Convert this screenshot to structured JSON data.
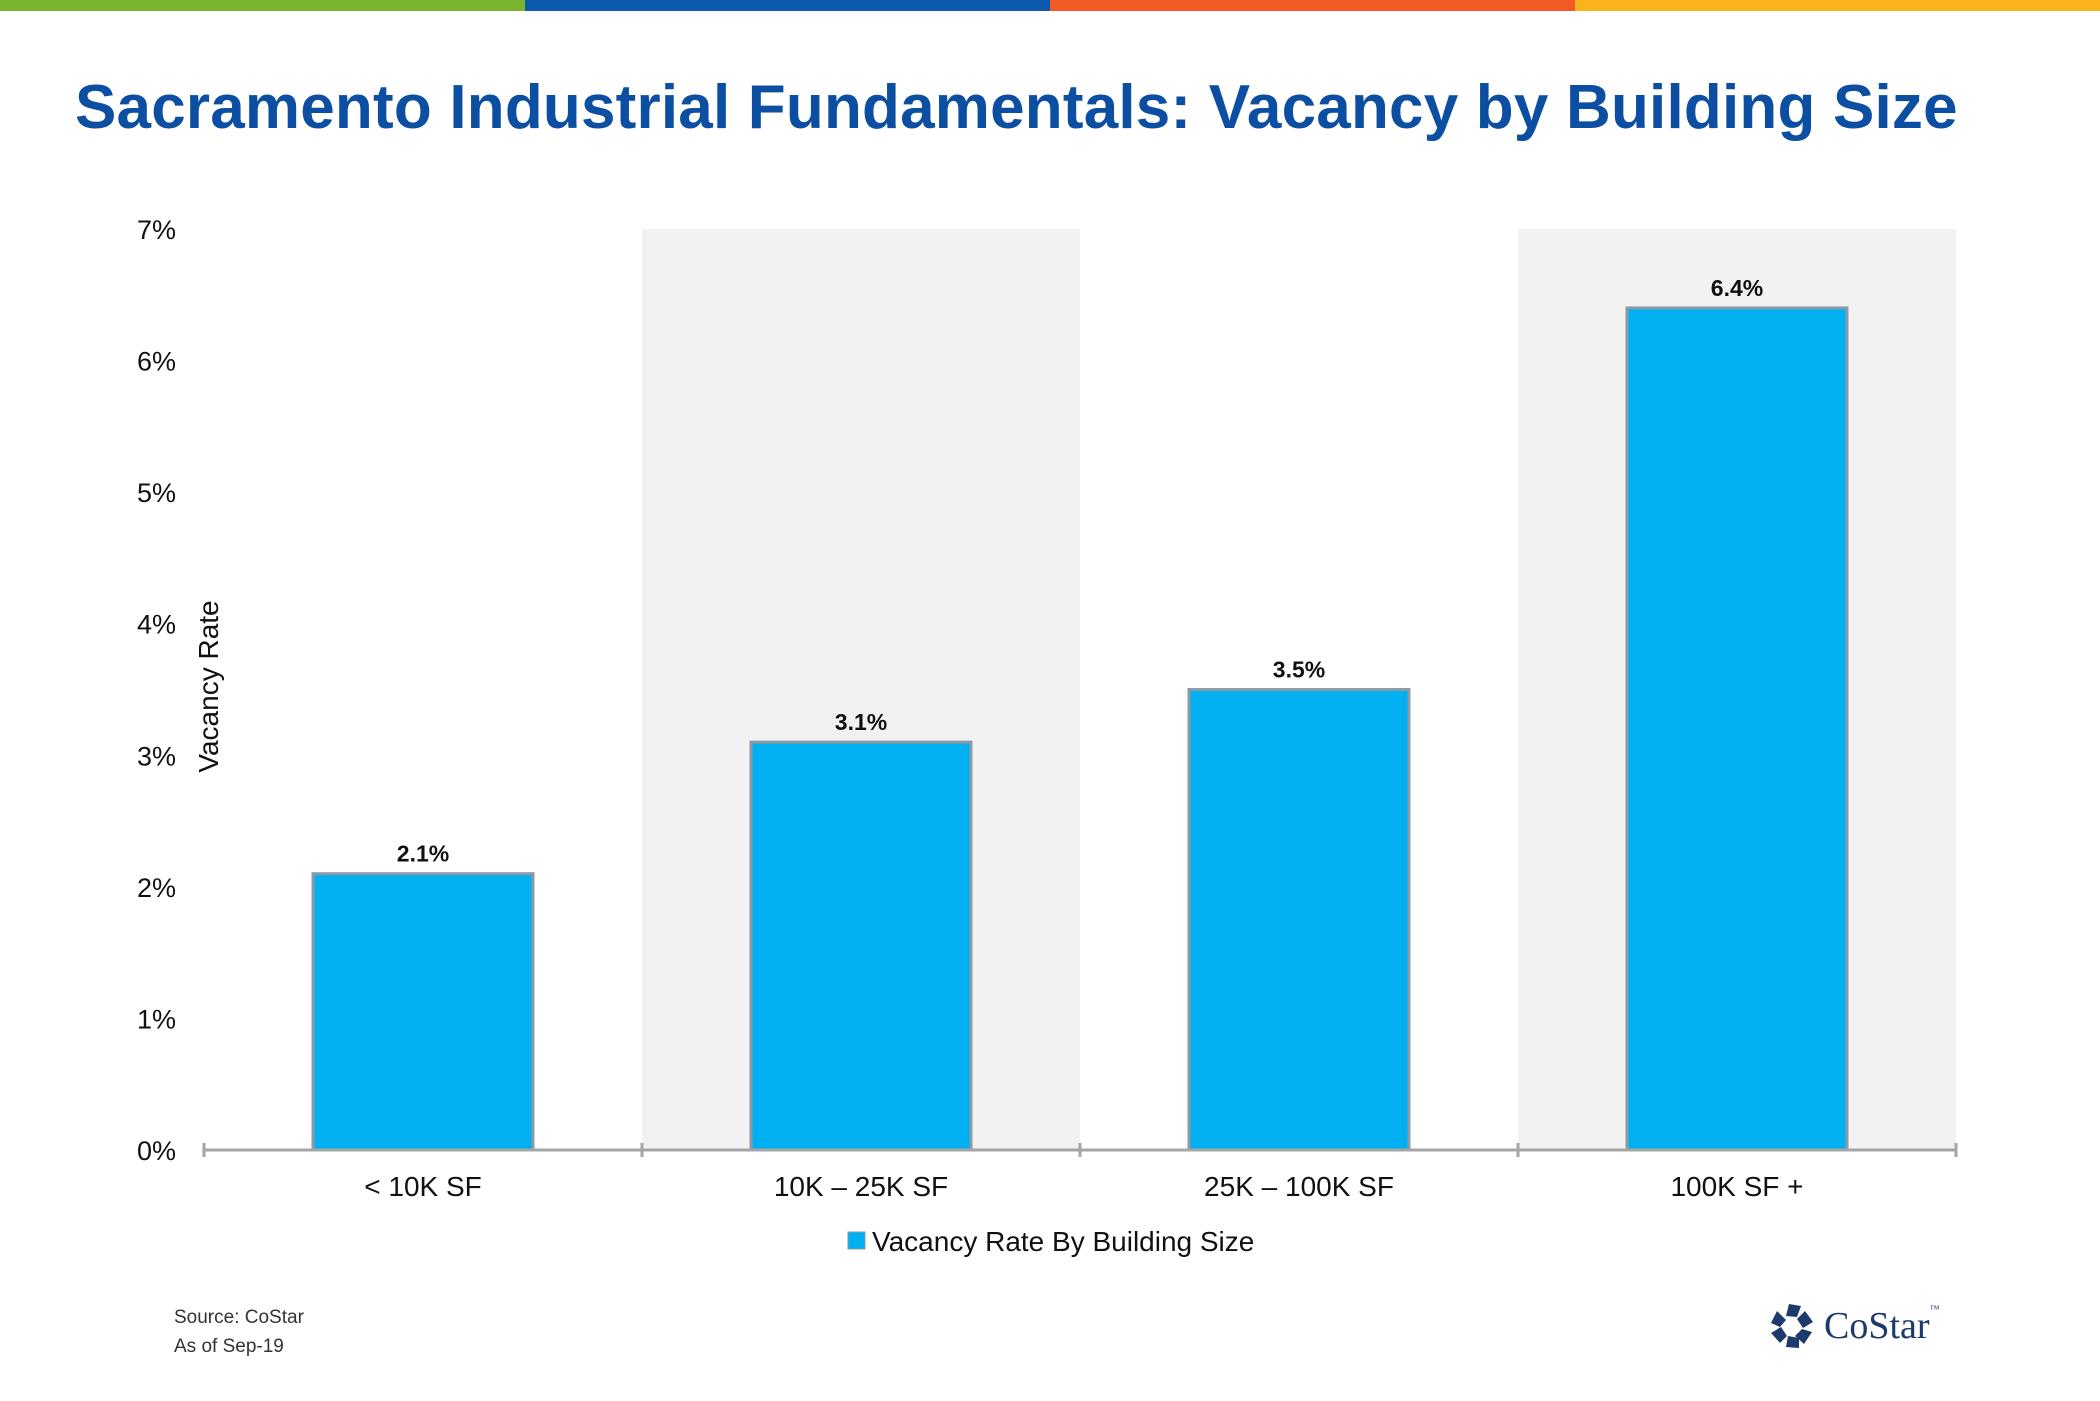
{
  "stripe_colors": [
    "#7ab32e",
    "#0b5ab0",
    "#f15a24",
    "#fbb31b"
  ],
  "slide": {
    "title": "Sacramento Industrial Fundamentals: Vacancy by Building Size"
  },
  "chart_data": {
    "type": "bar",
    "categories": [
      "< 10K SF",
      "10K – 25K SF",
      "25K – 100K SF",
      "100K SF +"
    ],
    "series": [
      {
        "name": "Vacancy Rate By Building Size",
        "values": [
          2.1,
          3.1,
          3.5,
          6.4
        ],
        "color": "#00b0f0"
      }
    ],
    "data_labels": [
      "2.1%",
      "3.1%",
      "3.5%",
      "6.4%"
    ],
    "ylabel": "Vacancy Rate",
    "xlabel": "",
    "ylim": [
      0,
      7
    ],
    "yticks": [
      "0%",
      "1%",
      "2%",
      "3%",
      "4%",
      "5%",
      "6%",
      "7%"
    ],
    "grid": false,
    "alternating_band_color": "#f2f2f2",
    "legend_position": "bottom"
  },
  "footer": {
    "source": "Source: CoStar",
    "as_of": "As of Sep-19",
    "logo_text": "CoStar",
    "logo_tm": "™"
  }
}
